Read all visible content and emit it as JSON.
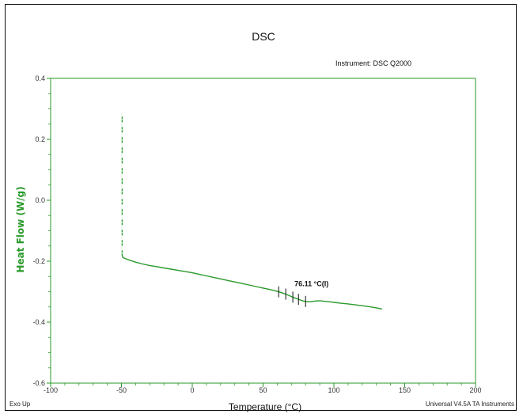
{
  "chart_data": {
    "type": "line",
    "title": "DSC",
    "instrument": "Instrument: DSC Q2000",
    "xlabel": "Temperature (°C)",
    "ylabel": "Heat Flow (W/g)",
    "xlim": [
      -100,
      200
    ],
    "ylim": [
      -0.6,
      0.4
    ],
    "x_ticks": [
      -100,
      -50,
      0,
      50,
      100,
      150,
      200
    ],
    "x_tick_labels": [
      "-100",
      "-50",
      "0",
      "50",
      "100",
      "150",
      "200"
    ],
    "y_ticks": [
      0.4,
      0.2,
      0.0,
      -0.2,
      -0.4,
      -0.6
    ],
    "y_tick_labels": [
      "0.4",
      "0.2",
      "0.0",
      "-0.2",
      "-0.4",
      "-0.6"
    ],
    "grid": false,
    "series_color": "#2a9a2a",
    "axis_color": "#2a9a2a",
    "series": [
      {
        "x": [
          -49.5,
          -49.5,
          -49.5,
          -49.5,
          -49.5,
          -49,
          -47,
          -44,
          -40,
          -35,
          -30,
          -25,
          -20,
          -15,
          -10,
          -5,
          0,
          5,
          10,
          15,
          20,
          25,
          30,
          35,
          40,
          45,
          50,
          55,
          60,
          63,
          66,
          69,
          72,
          75,
          78,
          80,
          82,
          85,
          88,
          91,
          94,
          97,
          100,
          105,
          110,
          115,
          120,
          125,
          130,
          134
        ],
        "y": [
          0.29,
          0.12,
          -0.02,
          -0.12,
          -0.18,
          -0.188,
          -0.192,
          -0.197,
          -0.203,
          -0.209,
          -0.214,
          -0.218,
          -0.222,
          -0.226,
          -0.23,
          -0.234,
          -0.238,
          -0.243,
          -0.248,
          -0.253,
          -0.258,
          -0.263,
          -0.268,
          -0.273,
          -0.278,
          -0.283,
          -0.288,
          -0.293,
          -0.299,
          -0.303,
          -0.308,
          -0.314,
          -0.32,
          -0.325,
          -0.33,
          -0.332,
          -0.333,
          -0.332,
          -0.33,
          -0.33,
          -0.332,
          -0.333,
          -0.335,
          -0.338,
          -0.34,
          -0.343,
          -0.346,
          -0.349,
          -0.353,
          -0.357
        ]
      }
    ],
    "transition_markers_x": [
      61,
      66,
      71,
      75,
      80
    ],
    "annotation": {
      "text": "76.11 °C(I)",
      "x": 71,
      "y": -0.29
    }
  },
  "footer": {
    "left": "Exo Up",
    "right": "Universal V4.5A TA Instruments"
  }
}
